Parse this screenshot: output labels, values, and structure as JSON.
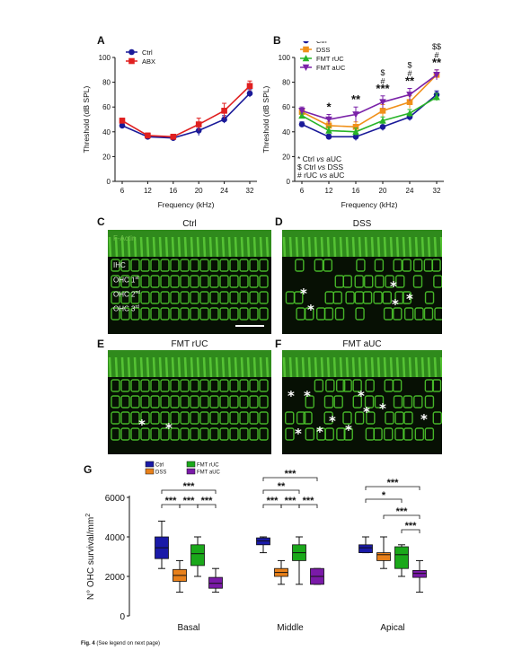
{
  "panels": {
    "A": "A",
    "B": "B",
    "C": "C",
    "D": "D",
    "E": "E",
    "F": "F",
    "G": "G"
  },
  "chart_data": [
    {
      "id": "A",
      "type": "line",
      "xlabel": "Frequency (kHz)",
      "ylabel": "Threshold (dB SPL)",
      "categories": [
        "6",
        "12",
        "16",
        "20",
        "24",
        "32"
      ],
      "ylim": [
        0,
        100
      ],
      "yticks": [
        "0",
        "20",
        "40",
        "60",
        "80",
        "100"
      ],
      "legend_position": "top-left",
      "series": [
        {
          "name": "Ctrl",
          "color": "#1a1a99",
          "marker": "circle",
          "values": [
            45,
            36,
            35,
            41,
            50,
            71
          ],
          "errors": [
            2,
            2,
            2,
            4,
            3,
            3
          ]
        },
        {
          "name": "ABX",
          "color": "#e02020",
          "marker": "square",
          "values": [
            49,
            37,
            36,
            46,
            57,
            77
          ],
          "errors": [
            2,
            2,
            2,
            5,
            6,
            4
          ]
        }
      ]
    },
    {
      "id": "B",
      "type": "line",
      "xlabel": "Frequency (kHz)",
      "ylabel": "Threshold (dB SPL)",
      "categories": [
        "6",
        "12",
        "16",
        "20",
        "24",
        "32"
      ],
      "ylim": [
        0,
        100
      ],
      "yticks": [
        "0",
        "20",
        "40",
        "60",
        "80",
        "100"
      ],
      "legend_position": "top-left",
      "series": [
        {
          "name": "Ctrl",
          "color": "#1a1a99",
          "marker": "circle",
          "values": [
            46,
            36,
            36,
            44,
            52,
            70
          ],
          "errors": [
            2,
            2,
            3,
            3,
            3,
            3
          ]
        },
        {
          "name": "DSS",
          "color": "#f0901a",
          "marker": "square",
          "values": [
            56,
            45,
            44,
            57,
            64,
            86
          ],
          "errors": [
            2,
            3,
            4,
            5,
            5,
            4
          ]
        },
        {
          "name": "FMT rUC",
          "color": "#28b428",
          "marker": "triangle",
          "values": [
            53,
            41,
            40,
            49,
            55,
            68
          ],
          "errors": [
            2,
            3,
            3,
            3,
            3,
            3
          ]
        },
        {
          "name": "FMT aUC",
          "color": "#7a22a8",
          "marker": "triangle-down",
          "values": [
            57,
            50,
            54,
            64,
            70,
            86
          ],
          "errors": [
            3,
            4,
            6,
            5,
            5,
            4
          ]
        }
      ],
      "significance": [
        {
          "x": "12",
          "lines": [
            "*"
          ]
        },
        {
          "x": "16",
          "lines": [
            "**"
          ]
        },
        {
          "x": "20",
          "lines": [
            "$",
            "#",
            "***"
          ]
        },
        {
          "x": "24",
          "lines": [
            "$",
            "#",
            "**"
          ]
        },
        {
          "x": "32",
          "lines": [
            "$$",
            "#",
            "**"
          ]
        }
      ],
      "key": [
        {
          "symbol": "*",
          "a": "Ctrl",
          "vs": "vs",
          "b": "aUC"
        },
        {
          "symbol": "$",
          "a": "Ctrl",
          "vs": "vs",
          "b": "DSS"
        },
        {
          "symbol": "#",
          "a": "rUC",
          "vs": "vs",
          "b": "aUC"
        }
      ]
    },
    {
      "id": "G",
      "type": "box",
      "ylabel": "N° OHC survival/mm",
      "ylabel_sup": "2",
      "ylim": [
        0,
        6000
      ],
      "yticks": [
        "0",
        "2000",
        "4000",
        "6000"
      ],
      "groups": [
        "Basal",
        "Middle",
        "Apical"
      ],
      "legend_position": "top-left",
      "series": [
        {
          "name": "Ctrl",
          "color": "#1a1aa8"
        },
        {
          "name": "DSS",
          "color": "#e8801a"
        },
        {
          "name": "FMT rUC",
          "color": "#1aa81a"
        },
        {
          "name": "FMT aUC",
          "color": "#7a1aa8"
        }
      ],
      "boxes": [
        {
          "group": "Basal",
          "series": "Ctrl",
          "min": 2400,
          "q1": 2900,
          "median": 3450,
          "q3": 4000,
          "max": 4800
        },
        {
          "group": "Basal",
          "series": "DSS",
          "min": 1200,
          "q1": 1750,
          "median": 2050,
          "q3": 2350,
          "max": 2800
        },
        {
          "group": "Basal",
          "series": "FMT rUC",
          "min": 2000,
          "q1": 2550,
          "median": 3150,
          "q3": 3600,
          "max": 4000
        },
        {
          "group": "Basal",
          "series": "FMT aUC",
          "min": 1200,
          "q1": 1400,
          "median": 1650,
          "q3": 1950,
          "max": 2400
        },
        {
          "group": "Middle",
          "series": "Ctrl",
          "min": 3200,
          "q1": 3600,
          "median": 3800,
          "q3": 3950,
          "max": 4000
        },
        {
          "group": "Middle",
          "series": "DSS",
          "min": 1600,
          "q1": 2000,
          "median": 2200,
          "q3": 2400,
          "max": 2800
        },
        {
          "group": "Middle",
          "series": "FMT rUC",
          "min": 1600,
          "q1": 2800,
          "median": 3200,
          "q3": 3600,
          "max": 4000
        },
        {
          "group": "Middle",
          "series": "FMT aUC",
          "min": 1600,
          "q1": 1600,
          "median": 2000,
          "q3": 2400,
          "max": 2400
        },
        {
          "group": "Apical",
          "series": "Ctrl",
          "min": 3200,
          "q1": 3200,
          "median": 3450,
          "q3": 3600,
          "max": 4000
        },
        {
          "group": "Apical",
          "series": "DSS",
          "min": 2400,
          "q1": 2800,
          "median": 3100,
          "q3": 3200,
          "max": 4000
        },
        {
          "group": "Apical",
          "series": "FMT rUC",
          "min": 2000,
          "q1": 2400,
          "median": 3100,
          "q3": 3500,
          "max": 3600
        },
        {
          "group": "Apical",
          "series": "FMT aUC",
          "min": 1200,
          "q1": 1950,
          "median": 2150,
          "q3": 2300,
          "max": 2800
        }
      ],
      "significance": [
        {
          "group": "Basal",
          "from": 0,
          "to": 1,
          "label": "***",
          "level": 1
        },
        {
          "group": "Basal",
          "from": 1,
          "to": 2,
          "label": "***",
          "level": 1
        },
        {
          "group": "Basal",
          "from": 2,
          "to": 3,
          "label": "***",
          "level": 1
        },
        {
          "group": "Basal",
          "from": 0,
          "to": 3,
          "label": "***",
          "level": 2
        },
        {
          "group": "Middle",
          "from": 0,
          "to": 1,
          "label": "***",
          "level": 1
        },
        {
          "group": "Middle",
          "from": 1,
          "to": 2,
          "label": "***",
          "level": 1
        },
        {
          "group": "Middle",
          "from": 2,
          "to": 3,
          "label": "***",
          "level": 1
        },
        {
          "group": "Middle",
          "from": 0,
          "to": 2,
          "label": "**",
          "level": 2
        },
        {
          "group": "Middle",
          "from": 0,
          "to": 3,
          "label": "***",
          "level": 3
        },
        {
          "group": "Apical",
          "from": 2,
          "to": 3,
          "label": "***",
          "level": 1
        },
        {
          "group": "Apical",
          "from": 1,
          "to": 3,
          "label": "***",
          "level": 2
        },
        {
          "group": "Apical",
          "from": 0,
          "to": 2,
          "label": "*",
          "level": 3
        },
        {
          "group": "Apical",
          "from": 0,
          "to": 3,
          "label": "***",
          "level": 4
        }
      ]
    }
  ],
  "micrographs": {
    "C": {
      "title": "Ctrl",
      "stain": "F-Actin",
      "rows": [
        "IHC",
        "OHC 1",
        "OHC 2",
        "OHC 3"
      ],
      "row_sup": [
        "",
        "st",
        "nd",
        "rd"
      ]
    },
    "D": {
      "title": "DSS"
    },
    "E": {
      "title": "FMT rUC"
    },
    "F": {
      "title": "FMT aUC"
    }
  },
  "caption": {
    "bold": "Fig. 4",
    "text": " (See legend on next page)"
  }
}
